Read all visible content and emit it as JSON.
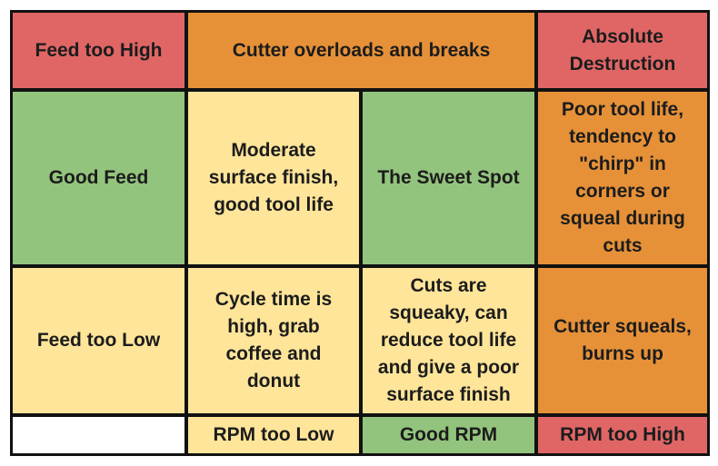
{
  "colors": {
    "red": "#e06666",
    "orange": "#e69138",
    "green": "#93c47d",
    "yellow": "#ffe599",
    "border": "#111111"
  },
  "rows": {
    "feed_high": {
      "label": "Feed too High",
      "rpm_low_and_good": "Cutter overloads and breaks",
      "rpm_high": "Absolute\nDestruction"
    },
    "good_feed": {
      "label": "Good Feed",
      "rpm_low": "Moderate\nsurface finish,\ngood tool life",
      "rpm_good": "The Sweet Spot",
      "rpm_high": "Poor tool life,\ntendency to\n\"chirp\" in\ncorners or\nsqueal during\ncuts"
    },
    "feed_low": {
      "label": "Feed too Low",
      "rpm_low": "Cycle time is\nhigh, grab\ncoffee and\ndonut",
      "rpm_good": "Cuts are\nsqueaky, can\nreduce tool life\nand give a poor\nsurface finish",
      "rpm_high": "Cutter squeals,\nburns up"
    }
  },
  "columns": {
    "corner": "",
    "rpm_low": "RPM too Low",
    "rpm_good": "Good RPM",
    "rpm_high": "RPM too High"
  }
}
